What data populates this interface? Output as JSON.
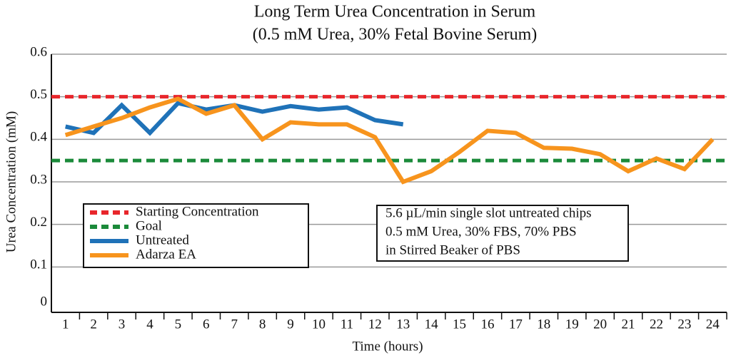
{
  "chart_data": {
    "type": "line",
    "title": [
      "Long Term Urea Concentration in Serum",
      "(0.5 mM Urea, 30% Fetal Bovine Serum)"
    ],
    "x_label": "Time (hours)",
    "y_label": "Urea Concentration (mM)",
    "x": [
      1,
      2,
      3,
      4,
      5,
      6,
      7,
      8,
      9,
      10,
      11,
      12,
      13,
      14,
      15,
      16,
      17,
      18,
      19,
      20,
      21,
      22,
      23,
      24
    ],
    "xlim": [
      0.5,
      24.5
    ],
    "xticks": [
      1,
      2,
      3,
      4,
      5,
      6,
      7,
      8,
      9,
      10,
      11,
      12,
      13,
      14,
      15,
      16,
      17,
      18,
      19,
      20,
      21,
      22,
      23,
      24
    ],
    "ylim": [
      0,
      0.6
    ],
    "yticks": [
      0,
      0.1,
      0.2,
      0.3,
      0.4,
      0.5,
      0.6
    ],
    "grid": true,
    "reference_lines": [
      {
        "name": "Starting Concentration",
        "value": 0.5,
        "color": "#e8262b"
      },
      {
        "name": "Goal",
        "value": 0.35,
        "color": "#1b8a3a"
      }
    ],
    "series": [
      {
        "name": "Untreated",
        "color": "#1f72b8",
        "values": [
          0.43,
          0.415,
          0.48,
          0.415,
          0.485,
          0.47,
          0.48,
          0.465,
          0.478,
          0.47,
          0.475,
          0.445,
          0.435,
          null,
          null,
          null,
          null,
          null,
          null,
          null,
          null,
          null,
          null,
          null
        ]
      },
      {
        "name": "Adarza EA",
        "color": "#f7941d",
        "values": [
          0.41,
          0.43,
          0.45,
          0.475,
          0.495,
          0.46,
          0.48,
          0.4,
          0.44,
          0.435,
          0.435,
          0.405,
          0.3,
          0.325,
          0.37,
          0.42,
          0.415,
          0.38,
          0.378,
          0.365,
          0.325,
          0.355,
          0.33,
          0.4
        ]
      }
    ],
    "annotation": [
      "5.6 µL/min single slot untreated chips",
      "0.5 mM Urea, 30% FBS, 70% PBS",
      "in Stirred Beaker of PBS"
    ]
  }
}
